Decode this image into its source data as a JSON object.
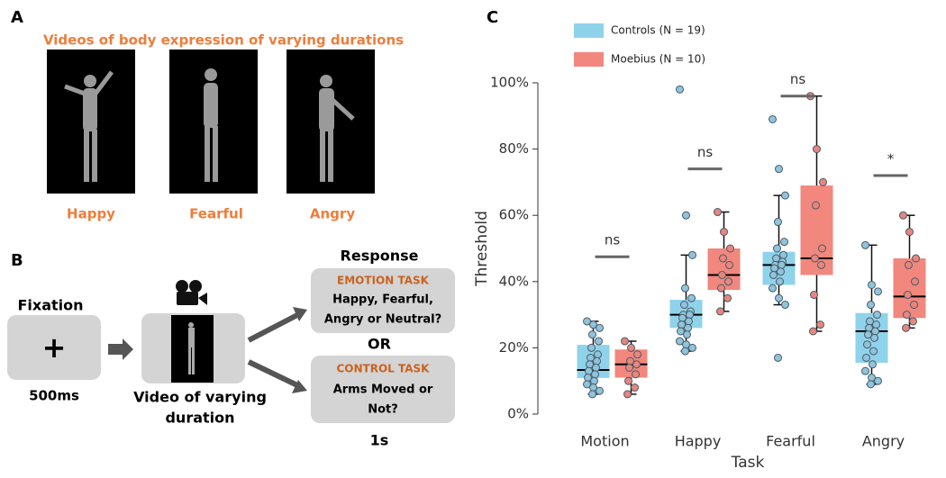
{
  "panels": {
    "a": {
      "letter": "A",
      "title": "Videos of body expression of varying durations",
      "labels": [
        "Happy",
        "Fearful",
        "Angry"
      ]
    },
    "b": {
      "letter": "B",
      "fixation": "Fixation",
      "plus": "+",
      "fixation_time": "500ms",
      "video": [
        "Video of varying",
        "duration"
      ],
      "response": "Response",
      "emotion_task": {
        "title": "EMOTION TASK",
        "lines": [
          "Happy, Fearful,",
          "Angry or Neutral?"
        ]
      },
      "or": "OR",
      "control_task": {
        "title": "CONTROL TASK",
        "lines": [
          "Arms Moved or",
          "Not?"
        ]
      },
      "response_time": "1s"
    }
  },
  "chart_data": {
    "type": "box",
    "panel_letter": "C",
    "xlabel": "Task",
    "ylabel": "Threshold",
    "categories": [
      "Motion",
      "Happy",
      "Fearful",
      "Angry"
    ],
    "ylim": [
      0,
      100
    ],
    "yticks": [
      {
        "value": 0,
        "label": "0%"
      },
      {
        "value": 20,
        "label": "20%"
      },
      {
        "value": 40,
        "label": "40%"
      },
      {
        "value": 60,
        "label": "60%"
      },
      {
        "value": 80,
        "label": "80%"
      },
      {
        "value": 100,
        "label": "100%"
      }
    ],
    "legend": "top-left",
    "series": [
      {
        "name": "Controls (N = 19)",
        "color": "#8fd3eb",
        "point_color": "#8fc4dc",
        "boxes": [
          {
            "whislo": 6,
            "q1": 10.9,
            "median": 13.3,
            "q3": 20.9,
            "whishi": 28,
            "points": [
              28,
              27,
              26,
              24,
              22,
              20,
              18,
              17,
              16,
              15,
              14,
              13,
              12,
              11,
              10,
              9,
              8,
              7,
              6
            ]
          },
          {
            "whislo": 19,
            "q1": 26,
            "median": 30,
            "q3": 34.5,
            "whishi": 48,
            "points": [
              98,
              60,
              48,
              38,
              35,
              33,
              31,
              30,
              30,
              29,
              28,
              27,
              26,
              25,
              24,
              22,
              21,
              20,
              19
            ]
          },
          {
            "whislo": 33,
            "q1": 39,
            "median": 45,
            "q3": 49,
            "whishi": 66,
            "points": [
              89,
              74,
              66,
              58,
              52,
              50,
              48,
              47,
              46,
              45,
              45,
              44,
              43,
              42,
              40,
              38,
              35,
              33,
              17
            ]
          },
          {
            "whislo": 9,
            "q1": 15.5,
            "median": 25,
            "q3": 30.5,
            "whishi": 51,
            "points": [
              51,
              39,
              37,
              33,
              30,
              28,
              27,
              26,
              25,
              24,
              23,
              21,
              19,
              17,
              15,
              13,
              11,
              10,
              9
            ]
          }
        ]
      },
      {
        "name": "Moebius (N = 10)",
        "color": "#f2877d",
        "point_color": "#e8867d",
        "boxes": [
          {
            "whislo": 6,
            "q1": 11,
            "median": 15,
            "q3": 19.5,
            "whishi": 22,
            "points": [
              22,
              20,
              18,
              16,
              15,
              14,
              12,
              10,
              8,
              6
            ]
          },
          {
            "whislo": 31,
            "q1": 37.5,
            "median": 42,
            "q3": 50,
            "whishi": 61,
            "points": [
              61,
              55,
              50,
              47,
              45,
              42,
              40,
              38,
              35,
              31
            ]
          },
          {
            "whislo": 25,
            "q1": 42,
            "median": 47,
            "q3": 69,
            "whishi": 96,
            "points": [
              96,
              80,
              70,
              63,
              50,
              47,
              45,
              36,
              27,
              25
            ]
          },
          {
            "whislo": 26,
            "q1": 29,
            "median": 35.5,
            "q3": 47,
            "whishi": 60,
            "points": [
              60,
              55,
              47,
              45,
              40,
              36,
              33,
              30,
              28,
              26
            ]
          }
        ]
      }
    ],
    "annotations": [
      {
        "text": "ns",
        "y": 47.5
      },
      {
        "text": "ns",
        "y": 74
      },
      {
        "text": "ns",
        "y": 96
      },
      {
        "text": "*",
        "y": 72
      }
    ]
  }
}
